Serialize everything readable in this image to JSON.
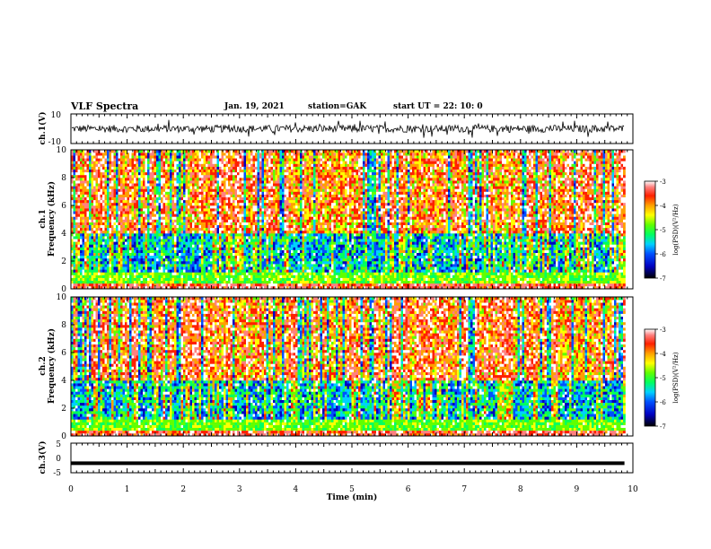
{
  "header": {
    "title": "VLF Spectra",
    "date": "Jan. 19, 2021",
    "station": "station=GAK",
    "start": "start UT =  22: 10: 0"
  },
  "colors": {
    "spectrogram_scale": [
      "#000000",
      "#0000c0",
      "#0050ff",
      "#00d0ff",
      "#00ff60",
      "#60ff00",
      "#ffff00",
      "#ffa000",
      "#ff2000",
      "#ff8080",
      "#ffffff"
    ],
    "trace": "#000000"
  },
  "chart_data": [
    {
      "type": "line",
      "name": "ch1-waveform",
      "ylabel": "ch.1(V)",
      "ylim": [
        -10,
        10
      ],
      "yticks": [
        "10",
        "-10"
      ],
      "xlim": [
        0,
        10
      ],
      "mean_value": 0,
      "noise_amplitude_v": 2.5
    },
    {
      "type": "heatmap",
      "name": "ch1-spectrogram",
      "ylabel": "ch.1\nFrequency (kHz)",
      "ylim": [
        0,
        10
      ],
      "yticks": [
        "0",
        "2",
        "4",
        "6",
        "8",
        "10"
      ],
      "xlim": [
        0,
        10
      ],
      "data_end_min": 9.85,
      "colorbar": {
        "label": "log(PSD)(V²/Hz)",
        "range": [
          -7,
          -3
        ],
        "ticks": [
          "-3",
          "-4",
          "-5",
          "-6",
          "-7"
        ]
      }
    },
    {
      "type": "heatmap",
      "name": "ch2-spectrogram",
      "ylabel": "ch.2\nFrequency (kHz)",
      "ylim": [
        0,
        10
      ],
      "yticks": [
        "0",
        "2",
        "4",
        "6",
        "8",
        "10"
      ],
      "xlim": [
        0,
        10
      ],
      "data_end_min": 9.85,
      "colorbar": {
        "label": "log(PSD)(V²/Hz)",
        "range": [
          -7,
          -3
        ],
        "ticks": [
          "-3",
          "-4",
          "-5",
          "-6",
          "-7"
        ]
      }
    },
    {
      "type": "line",
      "name": "ch3-waveform",
      "ylabel": "ch.3(V)",
      "ylim": [
        -5,
        5
      ],
      "yticks": [
        "5",
        "0",
        "-5"
      ],
      "xlim": [
        0,
        10
      ],
      "constant_value": -1.8
    }
  ],
  "xaxis": {
    "label": "Time (min)",
    "ticks": [
      "0",
      "1",
      "2",
      "3",
      "4",
      "5",
      "6",
      "7",
      "8",
      "9",
      "10"
    ]
  }
}
